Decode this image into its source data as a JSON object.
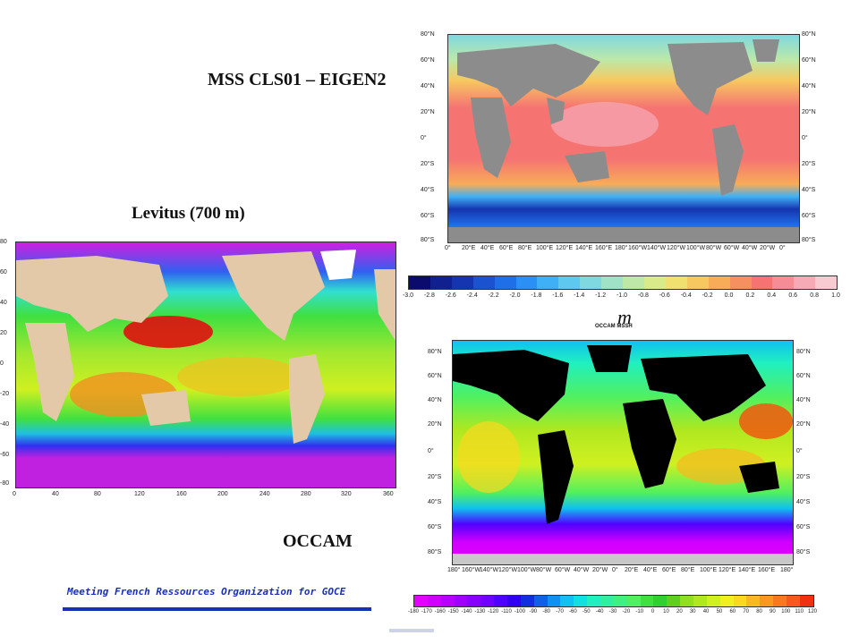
{
  "titles": {
    "mss": "MSS CLS01 – EIGEN2",
    "levitus": "Levitus (700 m)",
    "occam": "OCCAM",
    "occam_map_header": "OCCAM MSSH",
    "units": "m"
  },
  "footer": {
    "text": "Meeting French Ressources Organization for GOCE"
  },
  "mss_map": {
    "lat_labels": [
      "80°N",
      "60°N",
      "40°N",
      "20°N",
      "0°",
      "20°S",
      "40°S",
      "60°S",
      "80°S"
    ],
    "lon_labels": [
      "0°",
      "20°E",
      "40°E",
      "60°E",
      "80°E",
      "100°E",
      "120°E",
      "140°E",
      "160°E",
      "180°",
      "160°W",
      "140°W",
      "120°W",
      "100°W",
      "80°W",
      "60°W",
      "40°W",
      "20°W",
      "0°"
    ]
  },
  "levitus_map": {
    "lat_labels": [
      "80",
      "60",
      "40",
      "20",
      "0",
      "-20",
      "-40",
      "-60",
      "-80"
    ],
    "lon_labels": [
      "0",
      "40",
      "80",
      "120",
      "160",
      "200",
      "240",
      "280",
      "320",
      "360"
    ]
  },
  "occam_map": {
    "lat_labels": [
      "80°N",
      "60°N",
      "40°N",
      "20°N",
      "0°",
      "20°S",
      "40°S",
      "60°S",
      "80°S"
    ],
    "lon_labels": [
      "180°",
      "160°W",
      "140°W",
      "120°W",
      "100°W",
      "80°W",
      "60°W",
      "40°W",
      "20°W",
      "0°",
      "20°E",
      "40°E",
      "60°E",
      "80°E",
      "100°E",
      "120°E",
      "140°E",
      "160°E",
      "180°"
    ]
  },
  "colorbar_mss": {
    "labels": [
      "-3.0",
      "-2.8",
      "-2.6",
      "-2.4",
      "-2.2",
      "-2.0",
      "-1.8",
      "-1.6",
      "-1.4",
      "-1.2",
      "-1.0",
      "-0.8",
      "-0.6",
      "-0.4",
      "-0.2",
      "0.0",
      "0.2",
      "0.4",
      "0.6",
      "0.8",
      "1.0"
    ],
    "colors": [
      "#0b0b6e",
      "#10208e",
      "#1535b0",
      "#1a52d0",
      "#1f70e8",
      "#2a90f5",
      "#3fb0f5",
      "#5ec8ee",
      "#7fd8e0",
      "#9fe2c8",
      "#bde8a8",
      "#d8ea8a",
      "#efe070",
      "#f7c860",
      "#f8ac58",
      "#f79060",
      "#f57472",
      "#f58c96",
      "#f6aab6",
      "#f8cad2"
    ]
  },
  "colorbar_occam": {
    "labels": [
      "-180",
      "-170",
      "-160",
      "-150",
      "-140",
      "-130",
      "-120",
      "-110",
      "-100",
      "-90",
      "-80",
      "-70",
      "-60",
      "-50",
      "-40",
      "-30",
      "-20",
      "-10",
      "0",
      "10",
      "20",
      "30",
      "40",
      "50",
      "60",
      "70",
      "80",
      "90",
      "100",
      "110",
      "120"
    ],
    "colors": [
      "#e600ff",
      "#d000ff",
      "#b800ff",
      "#a000ff",
      "#8800ff",
      "#7000ff",
      "#5000ff",
      "#3000f0",
      "#1030e0",
      "#1060e8",
      "#1090f0",
      "#10c0f0",
      "#10e0e0",
      "#20f0c0",
      "#30f0a0",
      "#40f080",
      "#50f060",
      "#40e040",
      "#30d030",
      "#60d020",
      "#90e020",
      "#b0e820",
      "#d0f020",
      "#f0f020",
      "#f8d820",
      "#f8b820",
      "#f89820",
      "#f87820",
      "#f85820",
      "#f03010"
    ]
  }
}
